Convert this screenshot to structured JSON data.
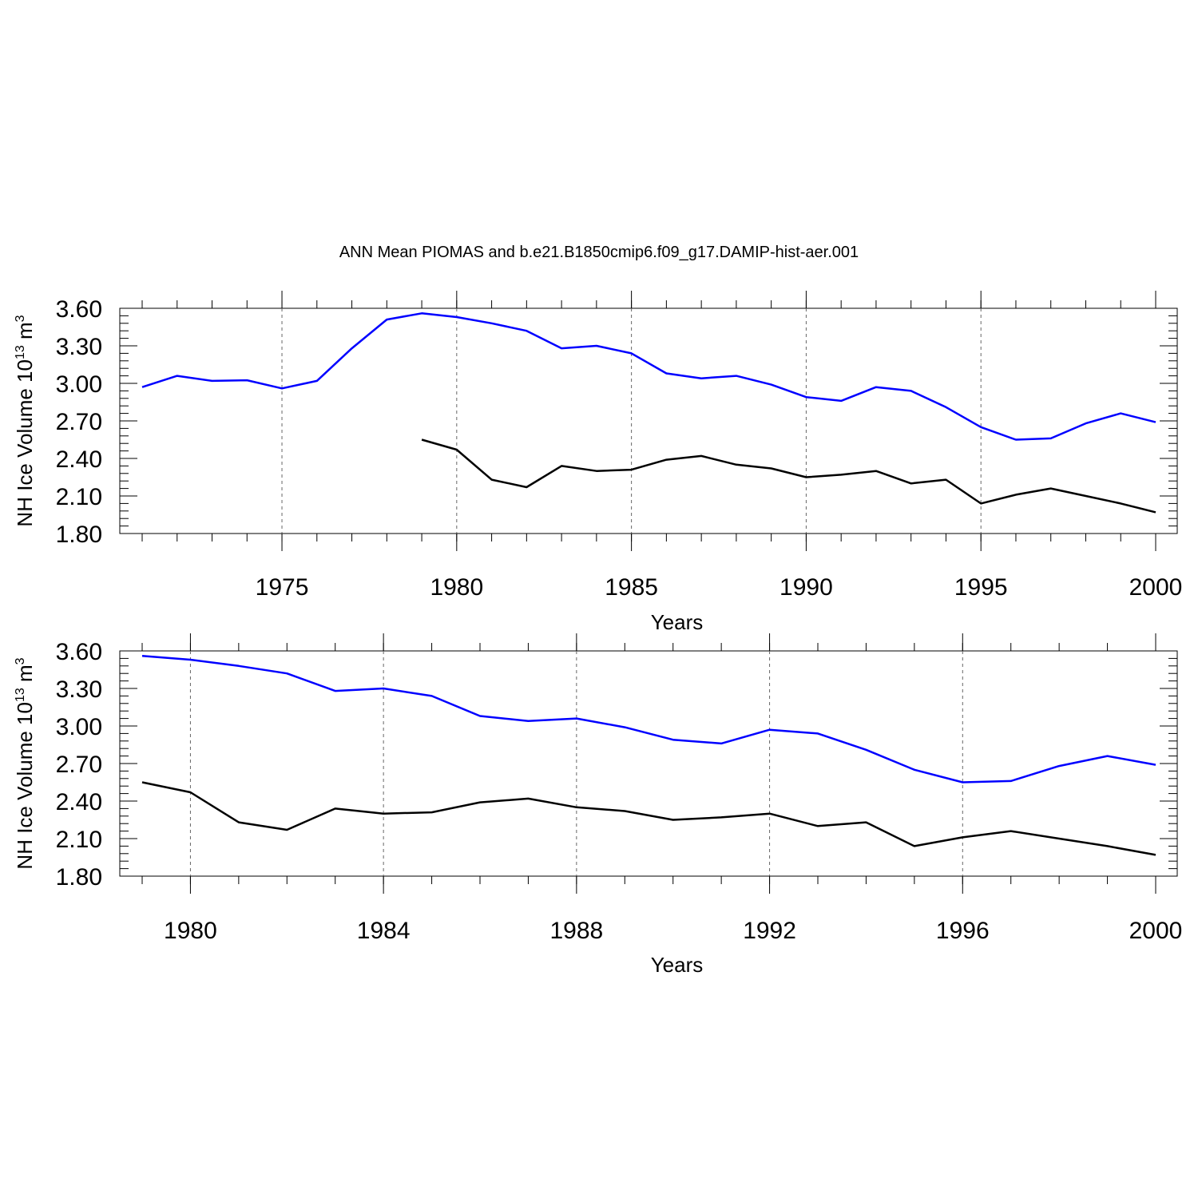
{
  "title": "ANN Mean PIOMAS and b.e21.B1850cmip6.f09_g17.DAMIP-hist-aer.001",
  "chart_data": [
    {
      "type": "line",
      "xlabel": "Years",
      "ylabel": "NH Ice Volume 10",
      "ylabel_exp": "13",
      "ylabel_unit": " m",
      "ylabel_unit_exp": "3",
      "xlim": [
        1971,
        2000
      ],
      "ylim": [
        1.8,
        3.6
      ],
      "yticks": [
        "1.80",
        "2.10",
        "2.40",
        "2.70",
        "3.00",
        "3.30",
        "3.60"
      ],
      "xticks": [
        1975,
        1980,
        1985,
        1990,
        1995,
        2000
      ],
      "xtick_labels": [
        "1975",
        "1980",
        "1985",
        "1990",
        "1995",
        "2000"
      ],
      "grid": "vertical dashed at major x ticks",
      "series": [
        {
          "color": "#0000ff",
          "x": [
            1971,
            1972,
            1973,
            1974,
            1975,
            1976,
            1977,
            1978,
            1979,
            1980,
            1981,
            1982,
            1983,
            1984,
            1985,
            1986,
            1987,
            1988,
            1989,
            1990,
            1991,
            1992,
            1993,
            1994,
            1995,
            1996,
            1997,
            1998,
            1999,
            2000
          ],
          "values": [
            2.97,
            3.06,
            3.02,
            3.025,
            2.96,
            3.02,
            3.28,
            3.51,
            3.56,
            3.53,
            3.48,
            3.42,
            3.28,
            3.3,
            3.24,
            3.08,
            3.04,
            3.06,
            2.99,
            2.89,
            2.86,
            2.97,
            2.94,
            2.81,
            2.65,
            2.55,
            2.56,
            2.68,
            2.76,
            2.69
          ]
        },
        {
          "color": "#000000",
          "x": [
            1979,
            1980,
            1981,
            1982,
            1983,
            1984,
            1985,
            1986,
            1987,
            1988,
            1989,
            1990,
            1991,
            1992,
            1993,
            1994,
            1995,
            1996,
            1997,
            1998,
            1999,
            2000
          ],
          "values": [
            2.55,
            2.47,
            2.23,
            2.17,
            2.34,
            2.3,
            2.31,
            2.39,
            2.42,
            2.35,
            2.32,
            2.25,
            2.27,
            2.3,
            2.2,
            2.23,
            2.04,
            2.11,
            2.16,
            2.1,
            2.04,
            1.97
          ]
        }
      ]
    },
    {
      "type": "line",
      "xlabel": "Years",
      "ylabel": "NH Ice Volume 10",
      "ylabel_exp": "13",
      "ylabel_unit": " m",
      "ylabel_unit_exp": "3",
      "xlim": [
        1979,
        2000
      ],
      "ylim": [
        1.8,
        3.6
      ],
      "yticks": [
        "1.80",
        "2.10",
        "2.40",
        "2.70",
        "3.00",
        "3.30",
        "3.60"
      ],
      "xticks": [
        1980,
        1984,
        1988,
        1992,
        1996,
        2000
      ],
      "xtick_labels": [
        "1980",
        "1984",
        "1988",
        "1992",
        "1996",
        "2000"
      ],
      "grid": "vertical dashed at major x ticks",
      "series": [
        {
          "color": "#0000ff",
          "x": [
            1979,
            1980,
            1981,
            1982,
            1983,
            1984,
            1985,
            1986,
            1987,
            1988,
            1989,
            1990,
            1991,
            1992,
            1993,
            1994,
            1995,
            1996,
            1997,
            1998,
            1999,
            2000
          ],
          "values": [
            3.56,
            3.53,
            3.48,
            3.42,
            3.28,
            3.3,
            3.24,
            3.08,
            3.04,
            3.06,
            2.99,
            2.89,
            2.86,
            2.97,
            2.94,
            2.81,
            2.65,
            2.55,
            2.56,
            2.68,
            2.76,
            2.69
          ]
        },
        {
          "color": "#000000",
          "x": [
            1979,
            1980,
            1981,
            1982,
            1983,
            1984,
            1985,
            1986,
            1987,
            1988,
            1989,
            1990,
            1991,
            1992,
            1993,
            1994,
            1995,
            1996,
            1997,
            1998,
            1999,
            2000
          ],
          "values": [
            2.55,
            2.47,
            2.23,
            2.17,
            2.34,
            2.3,
            2.31,
            2.39,
            2.42,
            2.35,
            2.32,
            2.25,
            2.27,
            2.3,
            2.2,
            2.23,
            2.04,
            2.11,
            2.16,
            2.1,
            2.04,
            1.97
          ]
        }
      ]
    }
  ]
}
